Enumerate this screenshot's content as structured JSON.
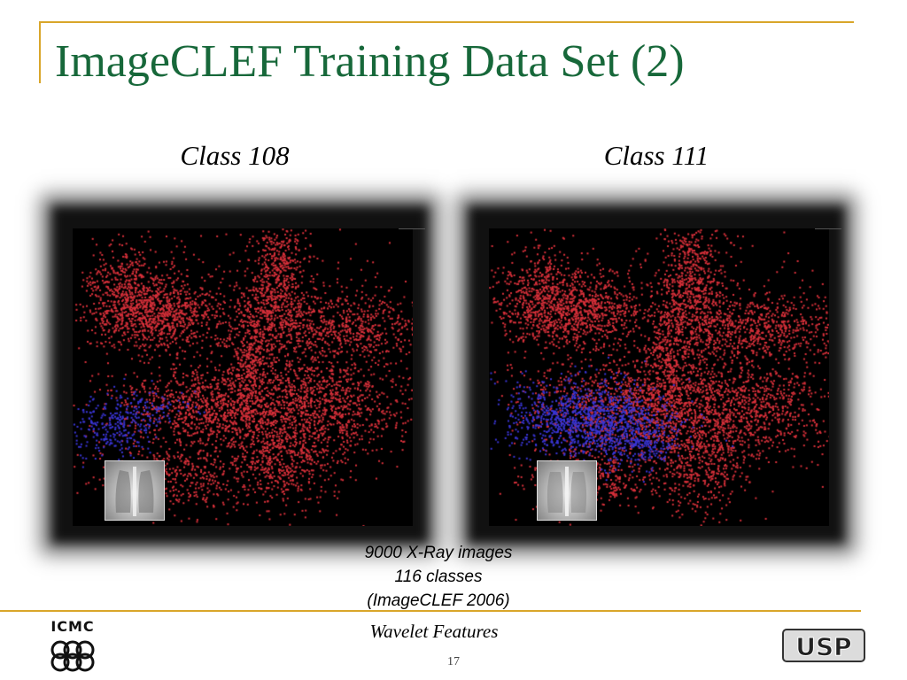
{
  "title": "ImageCLEF Training Data Set (2)",
  "panels": [
    {
      "label": "Class 108",
      "highlight_color": "#3a35d6",
      "base_color": "#d8303a"
    },
    {
      "label": "Class 111",
      "highlight_color": "#3a35d6",
      "base_color": "#d8303a"
    }
  ],
  "caption": {
    "line1": "9000 X-Ray images",
    "line2": "116 classes",
    "line3": "(ImageCLEF 2006)"
  },
  "footer": "Wavelet Features",
  "page_number": "17",
  "logos": {
    "left_text": "ICMC",
    "right_text": "USP"
  },
  "colors": {
    "title": "#17683a",
    "rule": "#d9a62a"
  }
}
